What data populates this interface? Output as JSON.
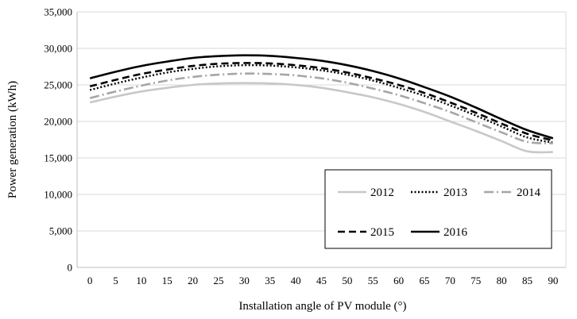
{
  "chart_data": {
    "type": "line",
    "title": "",
    "xlabel": "Installation angle of PV module (°)",
    "ylabel": "Power generation (kWh)",
    "xlim": [
      0,
      90
    ],
    "ylim": [
      0,
      35000
    ],
    "x": [
      0,
      5,
      10,
      15,
      20,
      25,
      30,
      35,
      40,
      45,
      50,
      55,
      60,
      65,
      70,
      75,
      80,
      85,
      90
    ],
    "x_tick_labels": [
      "0",
      "5",
      "10",
      "15",
      "20",
      "25",
      "30",
      "35",
      "40",
      "45",
      "50",
      "55",
      "60",
      "65",
      "70",
      "75",
      "80",
      "85",
      "90"
    ],
    "y_tick_labels": [
      "0",
      "5,000",
      "10,000",
      "15,000",
      "20,000",
      "25,000",
      "30,000",
      "35,000"
    ],
    "y_ticks": [
      0,
      5000,
      10000,
      15000,
      20000,
      25000,
      30000,
      35000
    ],
    "grid": "horizontal",
    "legend_position": "bottom-right",
    "series": [
      {
        "name": "2012",
        "color": "#c8c8c8",
        "dash": "solid",
        "values": [
          22600,
          23400,
          24100,
          24600,
          25000,
          25200,
          25250,
          25200,
          25000,
          24600,
          24000,
          23300,
          22400,
          21300,
          20000,
          18700,
          17300,
          15900,
          15800
        ]
      },
      {
        "name": "2013",
        "color": "#000000",
        "dash": "dotted",
        "values": [
          24300,
          25200,
          26000,
          26700,
          27200,
          27550,
          27700,
          27650,
          27400,
          27000,
          26400,
          25600,
          24600,
          23500,
          22200,
          20800,
          19300,
          17800,
          17100
        ]
      },
      {
        "name": "2014",
        "color": "#a6a6a6",
        "dash": "dashdot",
        "values": [
          23200,
          24100,
          24900,
          25600,
          26100,
          26400,
          26550,
          26500,
          26300,
          25900,
          25300,
          24500,
          23600,
          22500,
          21300,
          19900,
          18500,
          17200,
          17000
        ]
      },
      {
        "name": "2015",
        "color": "#000000",
        "dash": "dashed",
        "values": [
          24800,
          25700,
          26500,
          27100,
          27600,
          27900,
          28000,
          27950,
          27700,
          27300,
          26700,
          25900,
          25000,
          23900,
          22600,
          21200,
          19700,
          18300,
          17400
        ]
      },
      {
        "name": "2016",
        "color": "#000000",
        "dash": "solid",
        "values": [
          25900,
          26800,
          27600,
          28200,
          28700,
          28950,
          29050,
          28980,
          28700,
          28300,
          27700,
          26900,
          25900,
          24700,
          23400,
          21900,
          20300,
          18800,
          17700
        ]
      }
    ]
  }
}
